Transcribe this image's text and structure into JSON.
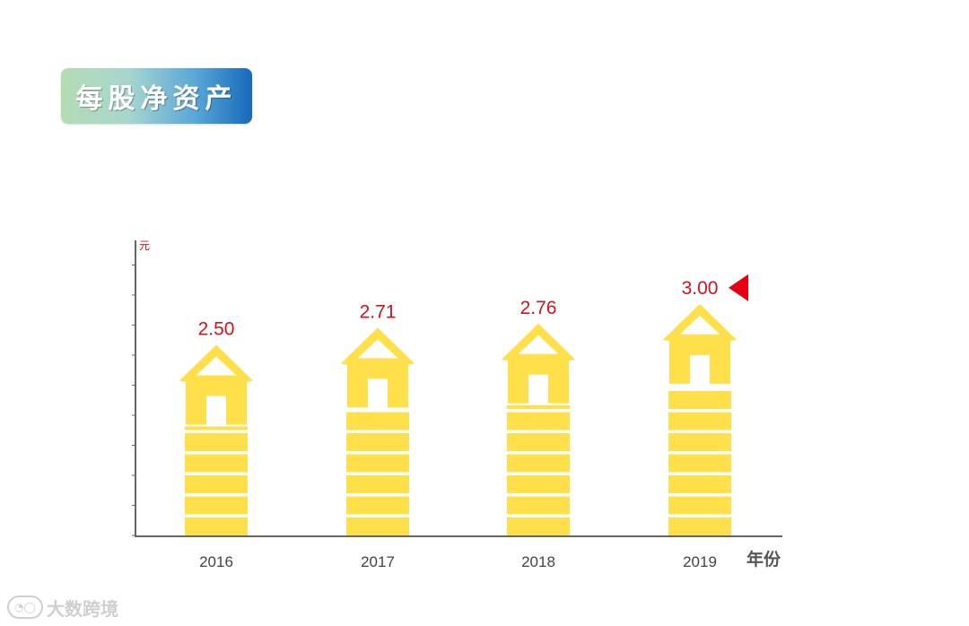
{
  "header": {
    "title": "每股净资产"
  },
  "colors": {
    "house": "#FFE04A",
    "value": "#D9101A",
    "axis": "#666666",
    "marker": "#E60012"
  },
  "chart_data": {
    "type": "bar",
    "title": "每股净资产",
    "ylabel": "元",
    "xlabel": "年份",
    "categories": [
      "2016",
      "2017",
      "2018",
      "2019"
    ],
    "values": [
      2.5,
      2.71,
      2.76,
      3.0
    ],
    "value_labels": [
      "2.50",
      "2.71",
      "2.76",
      "3.00"
    ],
    "ylim": [
      0,
      3.6
    ],
    "grid": false,
    "highlight_index": 3
  },
  "watermark": {
    "icon": "logo-icon",
    "text": "大数跨境"
  }
}
